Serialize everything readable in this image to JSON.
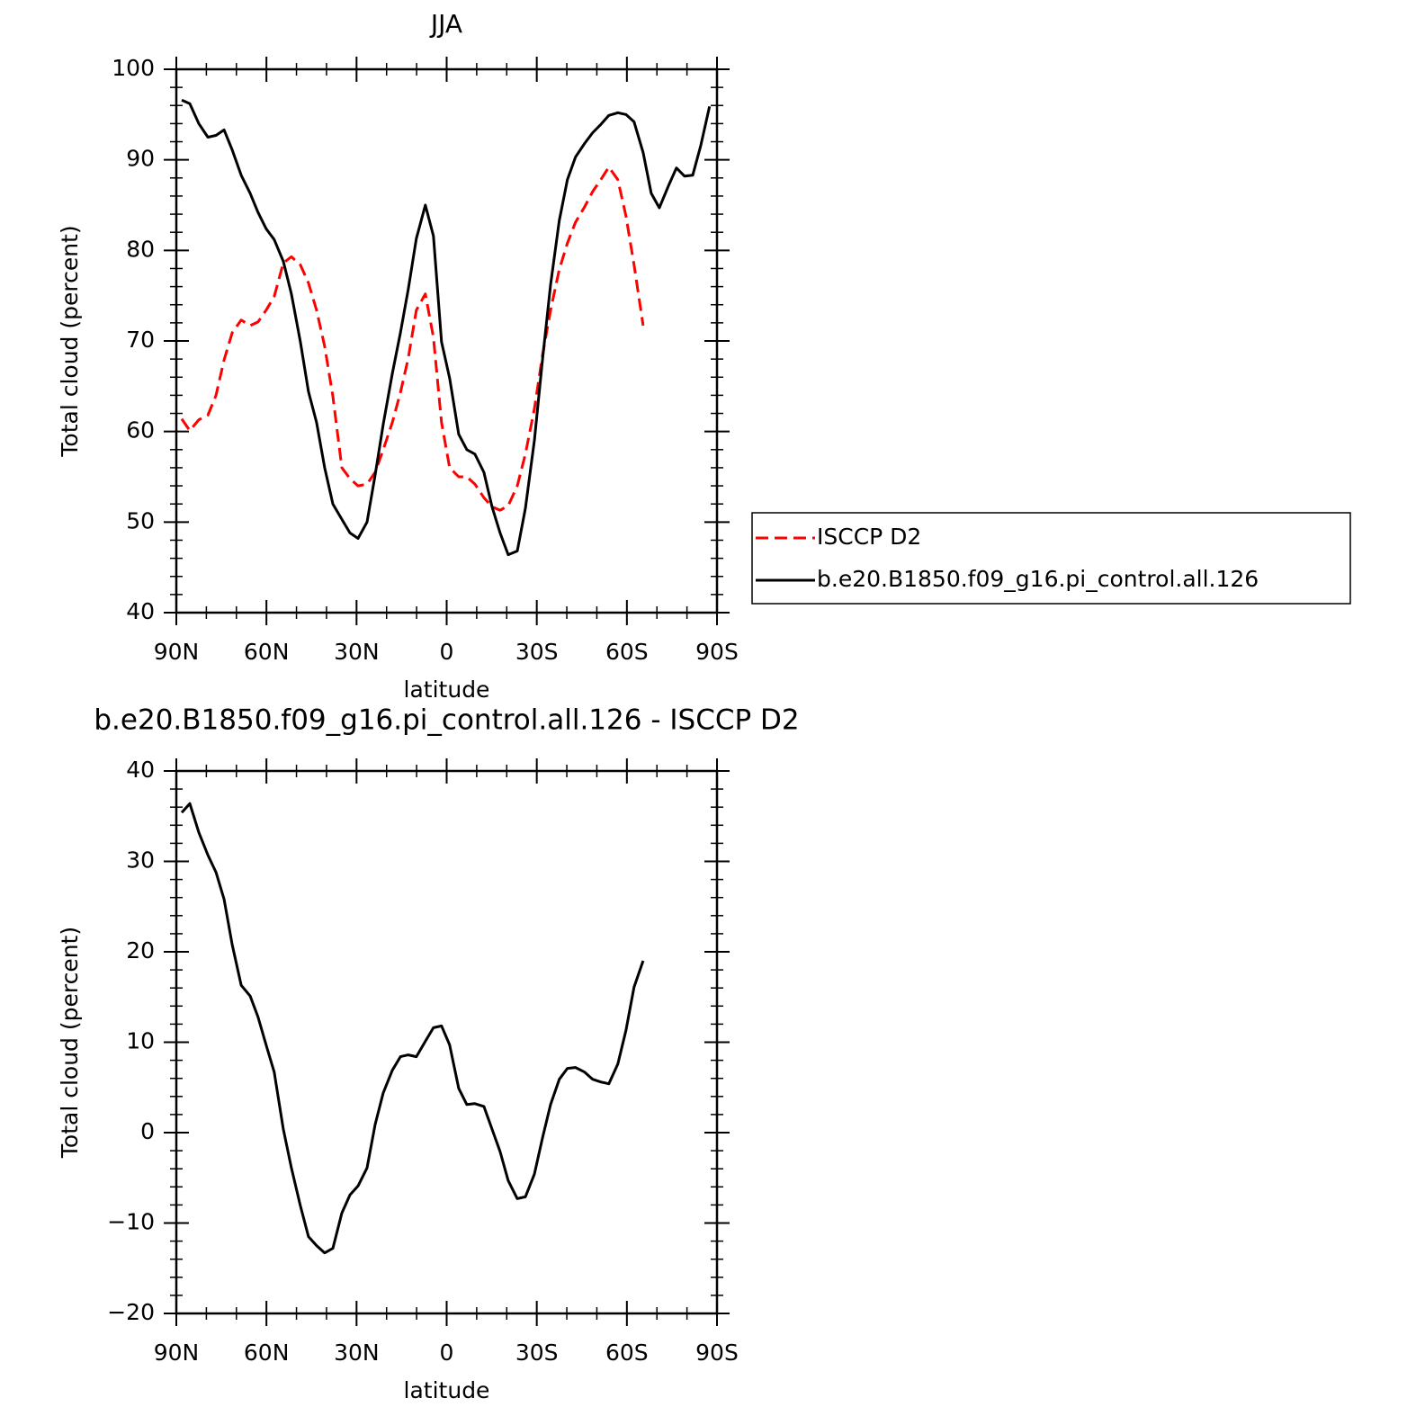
{
  "chart_data": [
    {
      "type": "line",
      "title": "JJA",
      "xlabel": "latitude",
      "ylabel": "Total cloud (percent)",
      "x": [
        88.2,
        85.5,
        82.5,
        79.5,
        76.8,
        74.1,
        71.4,
        68.4,
        65.4,
        62.8,
        60.1,
        57.4,
        54.4,
        51.7,
        48.7,
        46.0,
        43.3,
        40.6,
        37.9,
        34.9,
        32.2,
        29.5,
        26.5,
        23.8,
        21.1,
        18.1,
        15.4,
        12.8,
        10.1,
        7.1,
        4.4,
        1.7,
        -1.0,
        -4.0,
        -6.7,
        -9.4,
        -12.4,
        -15.1,
        -17.8,
        -20.5,
        -23.5,
        -26.2,
        -29.2,
        -31.9,
        -34.6,
        -37.5,
        -40.2,
        -42.9,
        -45.9,
        -48.6,
        -51.3,
        -54.0,
        -57.0,
        -59.7,
        -62.4,
        -65.4,
        -68.1,
        -70.8,
        -73.8,
        -76.5,
        -79.2,
        -81.9,
        -84.6,
        -87.5
      ],
      "xlim": [
        90,
        -90
      ],
      "xticks": [
        {
          "value": 90,
          "label": "90N"
        },
        {
          "value": 60,
          "label": "60N"
        },
        {
          "value": 30,
          "label": "30N"
        },
        0,
        {
          "value": -30,
          "label": "30S"
        },
        {
          "value": -60,
          "label": "60S"
        },
        {
          "value": -90,
          "label": "90S"
        }
      ],
      "xminorticks": [
        80,
        70,
        50,
        40,
        20,
        10,
        -10,
        -20,
        -40,
        -50,
        -70,
        -80
      ],
      "ylim": [
        40,
        100
      ],
      "yticks": [
        40,
        50,
        60,
        70,
        80,
        90,
        100
      ],
      "yminorticks": [
        42,
        44,
        46,
        48,
        52,
        54,
        56,
        58,
        62,
        64,
        66,
        68,
        72,
        74,
        76,
        78,
        82,
        84,
        86,
        88,
        92,
        94,
        96,
        98
      ],
      "legend": "right",
      "series": [
        {
          "name": "ISCCP D2",
          "color": "#ff0000",
          "dashed": true,
          "values": [
            61.4,
            60.1,
            61.3,
            61.8,
            64.0,
            67.9,
            70.9,
            72.3,
            71.7,
            72.1,
            73.4,
            74.9,
            78.6,
            79.3,
            78.4,
            76.4,
            73.4,
            69.4,
            63.9,
            56.0,
            54.8,
            54.0,
            54.2,
            55.5,
            58.0,
            61.0,
            64.3,
            68.1,
            73.4,
            75.2,
            70.4,
            61.0,
            56.0,
            55.0,
            55.0,
            54.2,
            52.7,
            51.7,
            51.3,
            51.8,
            54.0,
            57.5,
            62.5,
            68.4,
            73.4,
            77.9,
            80.8,
            83.1,
            84.8,
            86.5,
            87.8,
            89.2,
            87.8,
            83.8,
            78.4,
            71.7,
            null,
            null,
            null,
            null,
            null,
            null,
            null,
            null
          ]
        },
        {
          "name": "b.e20.B1850.f09_g16.pi_control.all.126",
          "color": "#000000",
          "dashed": false,
          "values": [
            96.6,
            96.2,
            94.0,
            92.5,
            92.7,
            93.3,
            91.1,
            88.3,
            86.3,
            84.2,
            82.4,
            81.2,
            78.8,
            75.2,
            69.9,
            64.4,
            61.0,
            56.0,
            52.0,
            50.3,
            48.8,
            48.2,
            50.0,
            55.2,
            60.8,
            66.4,
            70.9,
            75.7,
            81.3,
            85.0,
            81.6,
            69.9,
            65.9,
            59.7,
            58.0,
            57.5,
            55.5,
            51.7,
            48.8,
            46.4,
            46.8,
            51.5,
            59.0,
            67.9,
            76.2,
            83.3,
            87.8,
            90.3,
            91.8,
            93.0,
            93.9,
            94.9,
            95.2,
            95.0,
            94.2,
            90.8,
            86.3,
            84.7,
            87.1,
            89.1,
            88.2,
            88.3,
            91.6,
            95.9
          ]
        }
      ]
    },
    {
      "type": "line",
      "title": "b.e20.B1850.f09_g16.pi_control.all.126 - ISCCP D2",
      "xlabel": "latitude",
      "ylabel": "Total cloud (percent)",
      "x": [
        88.2,
        85.5,
        82.5,
        79.5,
        76.8,
        74.1,
        71.4,
        68.4,
        65.4,
        62.8,
        60.1,
        57.4,
        54.4,
        51.7,
        48.7,
        46.0,
        43.3,
        40.6,
        37.9,
        34.9,
        32.2,
        29.5,
        26.5,
        23.8,
        21.1,
        18.1,
        15.4,
        12.8,
        10.1,
        7.1,
        4.4,
        1.7,
        -1.0,
        -4.0,
        -6.7,
        -9.4,
        -12.4,
        -15.1,
        -17.8,
        -20.5,
        -23.5,
        -26.2,
        -29.2,
        -31.9,
        -34.6,
        -37.5,
        -40.2,
        -42.9,
        -45.9,
        -48.6,
        -51.3,
        -54.0,
        -57.0,
        -59.7,
        -62.4,
        -65.4,
        -68.1,
        -70.8,
        -73.8,
        -76.5,
        -79.2,
        -81.9,
        -84.6,
        -87.5
      ],
      "xlim": [
        90,
        -90
      ],
      "xticks": [
        {
          "value": 90,
          "label": "90N"
        },
        {
          "value": 60,
          "label": "60N"
        },
        {
          "value": 30,
          "label": "30N"
        },
        0,
        {
          "value": -30,
          "label": "30S"
        },
        {
          "value": -60,
          "label": "60S"
        },
        {
          "value": -90,
          "label": "90S"
        }
      ],
      "xminorticks": [
        80,
        70,
        50,
        40,
        20,
        10,
        -10,
        -20,
        -40,
        -50,
        -70,
        -80
      ],
      "ylim": [
        -20,
        40
      ],
      "yticks": [
        {
          "value": -20,
          "label": "−20"
        },
        {
          "value": -10,
          "label": "−10"
        },
        0,
        10,
        20,
        30,
        40
      ],
      "yminorticks": [
        -18,
        -16,
        -14,
        -12,
        -8,
        -6,
        -4,
        -2,
        2,
        4,
        6,
        8,
        12,
        14,
        16,
        18,
        22,
        24,
        26,
        28,
        32,
        34,
        36,
        38
      ],
      "color": "#000000",
      "values": [
        35.4,
        36.4,
        33.2,
        30.7,
        28.8,
        25.8,
        20.8,
        16.3,
        15.1,
        12.8,
        9.7,
        6.7,
        0.4,
        -3.9,
        -8.1,
        -11.5,
        -12.5,
        -13.3,
        -12.8,
        -8.9,
        -6.9,
        -5.9,
        -3.9,
        0.9,
        4.4,
        6.9,
        8.4,
        8.6,
        8.4,
        10.1,
        11.6,
        11.8,
        9.7,
        4.9,
        3.1,
        3.2,
        2.9,
        0.4,
        -2.1,
        -5.3,
        -7.3,
        -7.1,
        -4.6,
        -0.6,
        3.1,
        5.9,
        7.1,
        7.2,
        6.7,
        5.9,
        5.6,
        5.4,
        7.6,
        11.3,
        16.1,
        19.0,
        null,
        null,
        null,
        null,
        null,
        null,
        null,
        null
      ]
    }
  ]
}
